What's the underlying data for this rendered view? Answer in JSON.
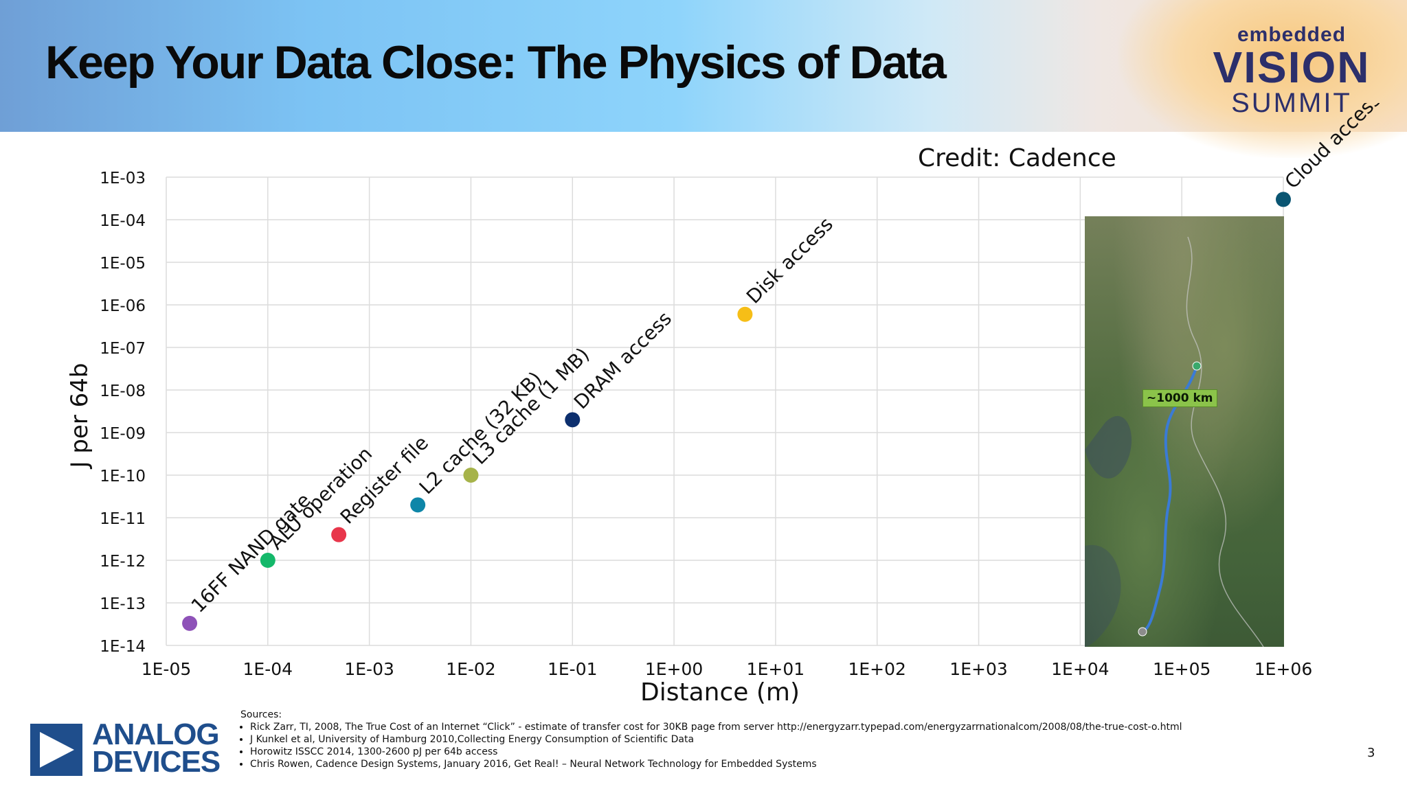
{
  "slide": {
    "title": "Keep Your Data Close: The Physics of Data",
    "page_number": "3"
  },
  "logo": {
    "line1": "embedded",
    "line2": "VISION",
    "line3": "SUMMIT"
  },
  "credit": "Credit: Cadence",
  "map": {
    "label": "~1000 km"
  },
  "footer": {
    "company_line1": "ANALOG",
    "company_line2": "DEVICES",
    "sources_heading": "Sources:",
    "sources": [
      "Rick Zarr, TI, 2008, The True Cost of an Internet “Click” - estimate of transfer cost for 30KB page from server http://energyzarr.typepad.com/energyzarrnationalcom/2008/08/the-true-cost-o.html",
      "J Kunkel et al, University of Hamburg 2010,Collecting Energy Consumption of Scientific Data",
      "Horowitz ISSCC 2014, 1300-2600 pJ per 64b access",
      "Chris Rowen, Cadence Design Systems, January 2016, Get Real! – Neural Network Technology for Embedded Systems"
    ]
  },
  "chart_data": {
    "type": "scatter",
    "xlabel": "Distance (m)",
    "ylabel": "J per 64b",
    "xscale": "log",
    "yscale": "log",
    "xlim": [
      1e-05,
      1000000.0
    ],
    "ylim": [
      1e-14,
      0.001
    ],
    "x_ticks": [
      "1E-05",
      "1E-04",
      "1E-03",
      "1E-02",
      "1E-01",
      "1E+00",
      "1E+01",
      "1E+02",
      "1E+03",
      "1E+04",
      "1E+05",
      "1E+06"
    ],
    "y_ticks": [
      "1E-03",
      "1E-04",
      "1E-05",
      "1E-06",
      "1E-07",
      "1E-08",
      "1E-09",
      "1E-10",
      "1E-11",
      "1E-12",
      "1E-13",
      "1E-14"
    ],
    "grid": true,
    "points": [
      {
        "label": "16FF NAND gate",
        "x": 1.7e-05,
        "y": 3.3e-14,
        "color": "#8e52b8"
      },
      {
        "label": "ALU operation",
        "x": 0.0001,
        "y": 1e-12,
        "color": "#14b86a"
      },
      {
        "label": "Register file",
        "x": 0.0005,
        "y": 4e-12,
        "color": "#e8364b"
      },
      {
        "label": "L2 cache (32 KB)",
        "x": 0.003,
        "y": 2e-11,
        "color": "#0e86a8"
      },
      {
        "label": "L3 cache (1 MB)",
        "x": 0.01,
        "y": 1e-10,
        "color": "#a6b34a"
      },
      {
        "label": "DRAM access",
        "x": 0.1,
        "y": 2e-09,
        "color": "#0d2f6e"
      },
      {
        "label": "Disk access",
        "x": 5,
        "y": 6e-07,
        "color": "#f6be17"
      },
      {
        "label": "Cloud access",
        "x": 1000000.0,
        "y": 0.0003,
        "color": "#0a5572"
      }
    ]
  }
}
